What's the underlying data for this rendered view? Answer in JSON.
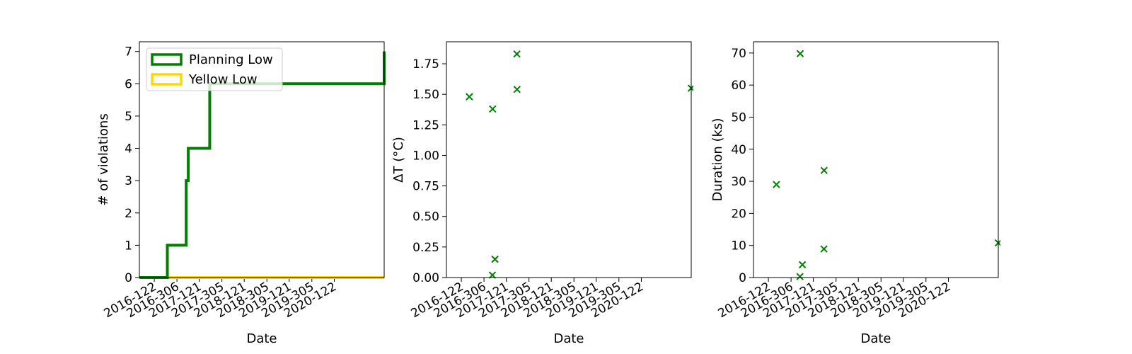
{
  "chart_data": [
    {
      "type": "line",
      "step": true,
      "xlabel": "Date",
      "ylabel": "# of violations",
      "xlim": [
        "2016-01-01",
        "2021-06-10"
      ],
      "ylim": [
        0,
        7.3
      ],
      "x_ticks": [
        "2016-122",
        "2016-306",
        "2017-121",
        "2017-305",
        "2018-121",
        "2018-305",
        "2019-121",
        "2019-305",
        "2020-122"
      ],
      "y_ticks": [
        0,
        1,
        2,
        3,
        4,
        5,
        6,
        7
      ],
      "legend_position": "upper-left",
      "grid": false,
      "series": [
        {
          "name": "Planning Low",
          "color": "#008000",
          "x": [
            "2016-01-01",
            "2016-08-15",
            "2017-01-15",
            "2017-02-01",
            "2017-07-25",
            "2021-06-10"
          ],
          "y": [
            0,
            1,
            3,
            4,
            6,
            7
          ]
        },
        {
          "name": "Yellow Low",
          "color": "#FFD700",
          "x": [
            "2016-01-01",
            "2021-06-10"
          ],
          "y": [
            0,
            0
          ]
        }
      ]
    },
    {
      "type": "scatter",
      "marker": "x",
      "xlabel": "Date",
      "ylabel": "ΔT ($^\\circ$C)",
      "xlim": [
        "2016-01-01",
        "2021-06-10"
      ],
      "ylim": [
        0,
        1.93
      ],
      "x_ticks": [
        "2016-122",
        "2016-306",
        "2017-121",
        "2017-305",
        "2018-121",
        "2018-305",
        "2019-121",
        "2019-305",
        "2020-122"
      ],
      "y_ticks": [
        0.0,
        0.25,
        0.5,
        0.75,
        1.0,
        1.25,
        1.5,
        1.75
      ],
      "grid": false,
      "series": [
        {
          "color": "#008000",
          "x": [
            "2016-07-05",
            "2017-01-08",
            "2017-01-10",
            "2017-01-29",
            "2017-07-26",
            "2017-07-27",
            "2021-06-10"
          ],
          "y": [
            1.48,
            0.02,
            1.38,
            0.15,
            1.83,
            1.54,
            1.55
          ]
        }
      ]
    },
    {
      "type": "scatter",
      "marker": "x",
      "xlabel": "Date",
      "ylabel": "Duration (ks)",
      "xlim": [
        "2016-01-01",
        "2021-06-10"
      ],
      "ylim": [
        0,
        73.5
      ],
      "x_ticks": [
        "2016-122",
        "2016-306",
        "2017-121",
        "2017-305",
        "2018-121",
        "2018-305",
        "2019-121",
        "2019-305",
        "2020-122"
      ],
      "y_ticks": [
        0,
        10,
        20,
        30,
        40,
        50,
        60,
        70
      ],
      "grid": false,
      "series": [
        {
          "color": "#008000",
          "x": [
            "2016-07-05",
            "2017-01-12",
            "2017-01-14",
            "2017-02-01",
            "2017-07-26",
            "2017-07-27",
            "2021-06-10"
          ],
          "y": [
            29.0,
            0.3,
            69.8,
            4.0,
            8.9,
            33.4,
            10.8
          ]
        }
      ]
    }
  ]
}
